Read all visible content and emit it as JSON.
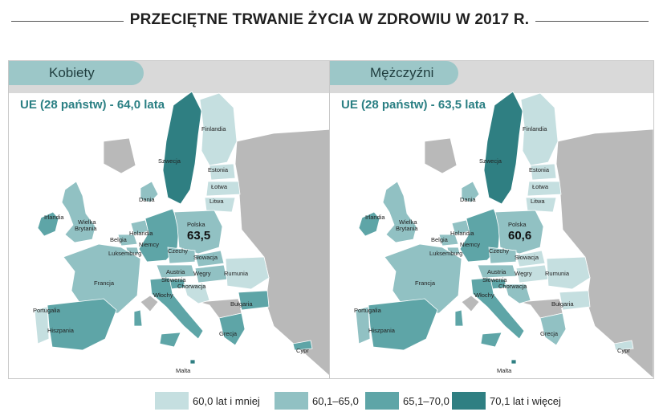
{
  "title": "PRZECIĘTNE TRWANIE ŻYCIA W ZDROWIU W 2017 R.",
  "colors": {
    "c1": "#c5dfe0",
    "c2": "#91c1c3",
    "c3": "#5ea5a7",
    "c4": "#2f7f82",
    "nodata": "#b9b9b9",
    "sea": "#ffffff",
    "bg": "#d9d9d9"
  },
  "panels": [
    {
      "tab": "Kobiety",
      "ue": "UE (28 państw) - 64,0 lata",
      "poland_value": "63,5",
      "countries": {
        "Finlandia": "c1",
        "Szwecja": "c4",
        "Estonia": "c1",
        "Łotwa": "c1",
        "Litwa": "c1",
        "Dania": "c2",
        "Irlandia": "c3",
        "Wielka Brytania": "c2",
        "Holandia": "c2",
        "Belgia": "c2",
        "Luksemburg": "c2",
        "Niemcy": "c3",
        "Polska": "c2",
        "Czechy": "c2",
        "Słowacja": "c2",
        "Francja": "c2",
        "Austria": "c2",
        "Węgry": "c2",
        "Rumunia": "c1",
        "Słowenia": "c3",
        "Chorwacja": "c1",
        "Bułgaria": "c3",
        "Portugalia": "c1",
        "Hiszpania": "c3",
        "Włochy": "c3",
        "Grecja": "c3",
        "Malta": "c4",
        "Cypr": "c3"
      }
    },
    {
      "tab": "Mężczyźni",
      "ue": "UE (28 państw) - 63,5 lata",
      "poland_value": "60,6",
      "countries": {
        "Finlandia": "c1",
        "Szwecja": "c4",
        "Estonia": "c1",
        "Łotwa": "c1",
        "Litwa": "c1",
        "Dania": "c2",
        "Irlandia": "c3",
        "Wielka Brytania": "c2",
        "Holandia": "c2",
        "Belgia": "c2",
        "Luksemburg": "c2",
        "Niemcy": "c3",
        "Polska": "c2",
        "Czechy": "c2",
        "Słowacja": "c1",
        "Francja": "c2",
        "Austria": "c2",
        "Węgry": "c1",
        "Rumunia": "c1",
        "Słowenia": "c3",
        "Chorwacja": "c2",
        "Bułgaria": "c1",
        "Portugalia": "c2",
        "Hiszpania": "c3",
        "Włochy": "c3",
        "Grecja": "c2",
        "Malta": "c4",
        "Cypr": "c1"
      }
    }
  ],
  "labels": {
    "finlandia": "Finlandia",
    "szwecja": "Szwecja",
    "estonia": "Estonia",
    "lotwa": "Łotwa",
    "litwa": "Litwa",
    "dania": "Dania",
    "irlandia": "Irlandia",
    "wb1": "Wielka",
    "wb2": "Brytania",
    "holandia": "Holandia",
    "belgia": "Belgia",
    "luksemburg": "Luksemburg",
    "niemcy": "Niemcy",
    "polska": "Polska",
    "czechy": "Czechy",
    "slowacja": "Słowacja",
    "francja": "Francja",
    "austria": "Austria",
    "wegry": "Węgry",
    "rumunia": "Rumunia",
    "slowenia": "Słowenia",
    "chorwacja": "Chorwacja",
    "bulgaria": "Bułgaria",
    "portugalia": "Portugalia",
    "hiszpania": "Hiszpania",
    "wlochy": "Włochy",
    "grecja": "Grecja",
    "malta": "Malta",
    "cypr": "Cypr"
  },
  "legend": [
    {
      "label": "60,0 lat i mniej",
      "color": "c1"
    },
    {
      "label": "60,1–65,0",
      "color": "c2"
    },
    {
      "label": "65,1–70,0",
      "color": "c3"
    },
    {
      "label": "70,1 lat i więcej",
      "color": "c4"
    }
  ]
}
